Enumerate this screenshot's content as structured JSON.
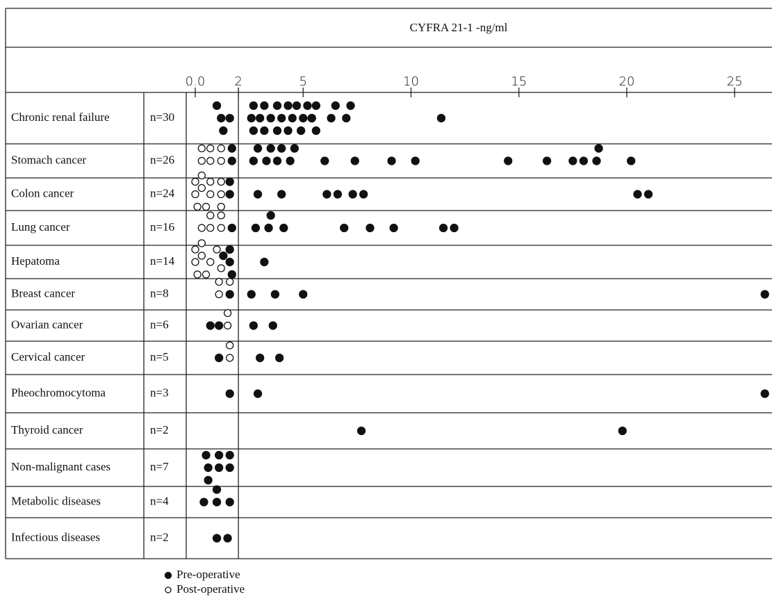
{
  "chart_data": {
    "type": "dot",
    "title": "CYFRA 21-1 -ng/ml",
    "categories": [
      "Chronic renal failure",
      "Stomach cancer",
      "Colon cancer",
      "Lung cancer",
      "Hepatoma",
      "Breast cancer",
      "Ovarian cancer",
      "Cervical cancer",
      "Pheochromocytoma",
      "Thyroid cancer",
      "Non-malignant cases",
      "Metabolic diseases",
      "Infectious diseases"
    ],
    "n_labels": [
      "n=30",
      "n=26",
      "n=24",
      "n=16",
      "n=14",
      "n=8",
      "n=6",
      "n=5",
      "n=3",
      "n=2",
      "n=7",
      "n=4",
      "n=2"
    ],
    "xlim": [
      0,
      26.5
    ],
    "xticks": [
      {
        "value": 0,
        "label": "0.0"
      },
      2,
      5,
      10,
      15,
      20,
      25
    ],
    "series": [
      {
        "name": "Pre-operative",
        "color": "#111111",
        "marker": "filled",
        "values": [
          [
            1.2,
            1.0,
            1.6,
            1.3,
            2.6,
            3.0,
            3.5,
            4.0,
            4.5,
            5.0,
            5.4,
            5.6,
            6.3,
            7.0,
            2.7,
            3.2,
            3.8,
            4.3,
            4.7,
            5.2,
            5.6,
            6.5,
            7.2,
            2.7,
            3.2,
            3.8,
            4.3,
            4.9,
            5.4,
            11.4
          ],
          [
            1.7,
            1.7,
            2.7,
            3.3,
            3.8,
            4.4,
            6.0,
            7.4,
            9.1,
            10.2,
            14.5,
            16.3,
            17.5,
            18.0,
            18.6,
            20.2,
            2.9,
            3.5,
            4.0,
            4.6,
            18.7
          ],
          [
            1.6,
            1.6,
            2.9,
            4.0,
            6.1,
            6.6,
            7.3,
            7.8,
            20.5,
            21.0
          ],
          [
            1.7,
            2.8,
            3.4,
            3.5,
            4.1,
            6.9,
            8.1,
            9.2,
            11.5,
            12.0
          ],
          [
            1.6,
            1.6,
            1.3,
            1.7,
            3.2
          ],
          [
            1.6,
            2.6,
            3.7,
            5.0,
            26.4
          ],
          [
            1.1,
            0.7,
            2.7,
            3.6
          ],
          [
            1.1,
            3.0,
            3.9
          ],
          [
            1.6,
            2.9,
            26.4
          ],
          [
            7.7,
            19.8
          ],
          [
            0.6,
            1.1,
            1.6,
            0.5,
            1.1,
            1.6,
            0.6
          ],
          [
            0.4,
            1.0,
            1.6,
            1.0
          ],
          [
            1.0,
            1.5
          ]
        ]
      },
      {
        "name": "Post-operative",
        "color": "#111111",
        "marker": "open",
        "values": [
          [],
          [
            0.3,
            0.7,
            1.2,
            0.3,
            0.7,
            1.2
          ],
          [
            0.0,
            0.3,
            0.7,
            1.2,
            0.1,
            0.5,
            1.2,
            0.0,
            0.3,
            0.7,
            1.2
          ],
          [
            0.7,
            1.2,
            0.3,
            1.2,
            0.7
          ],
          [
            0.0,
            0.3,
            0.7,
            1.2,
            0.1,
            0.5,
            1.0,
            0.0,
            0.3
          ],
          [
            1.1,
            1.1,
            1.6
          ],
          [
            1.5,
            1.5
          ],
          [
            1.6,
            1.6
          ],
          [],
          [],
          [],
          [],
          []
        ]
      }
    ]
  }
}
